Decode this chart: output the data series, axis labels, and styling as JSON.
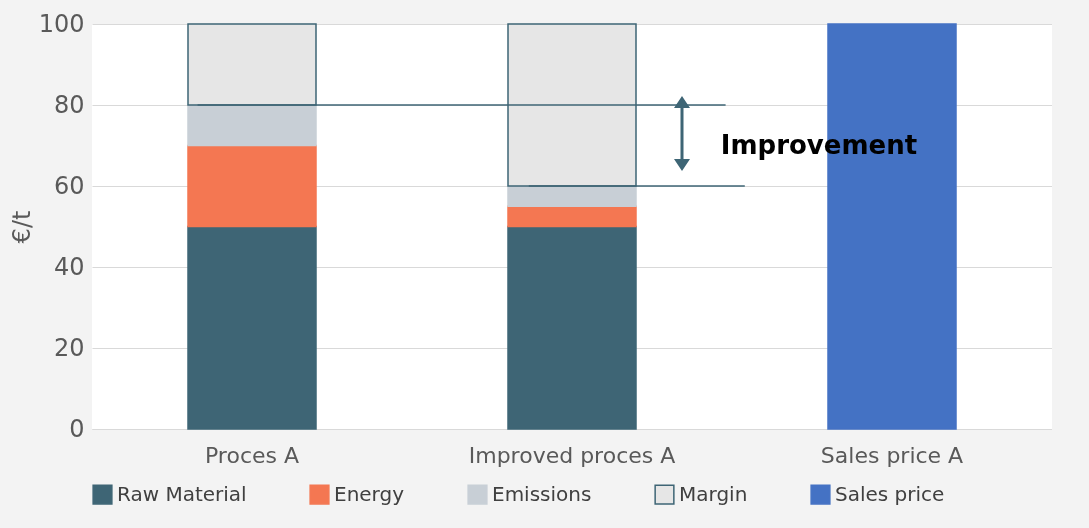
{
  "chart_data": {
    "type": "bar",
    "stacked": true,
    "ylabel": "€/t",
    "categories": [
      "Proces A",
      "Improved proces A",
      "Sales price A"
    ],
    "series": [
      {
        "name": "Raw Material",
        "color": "#3e6575",
        "values": [
          50,
          50,
          null
        ]
      },
      {
        "name": "Energy",
        "color": "#f47752",
        "values": [
          20,
          5,
          null
        ]
      },
      {
        "name": "Emissions",
        "color": "#c8cfd6",
        "values": [
          10,
          5,
          null
        ]
      },
      {
        "name": "Margin",
        "color": "#e6e6e6",
        "values": [
          20,
          40,
          null
        ]
      },
      {
        "name": "Sales price",
        "color": "#4472c4",
        "values": [
          null,
          null,
          100
        ]
      }
    ],
    "ylim": [
      0,
      100
    ],
    "yticks": [
      0,
      20,
      40,
      60,
      80,
      100
    ],
    "grid": "y",
    "legend": "bottom",
    "ref_lines": [
      {
        "axis": "y",
        "value": 80,
        "color": "#3e6575"
      },
      {
        "axis": "y",
        "value": 60,
        "color": "#3e6575"
      }
    ],
    "annotations": [
      "Improvement"
    ]
  }
}
